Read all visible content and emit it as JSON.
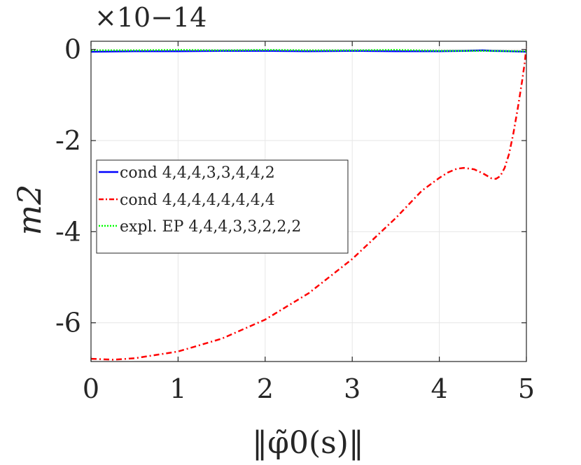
{
  "chart_data": {
    "type": "line",
    "title": "",
    "xlabel": "‖φ̃0(s)‖",
    "ylabel": "m2",
    "exponent_label": "×10−14",
    "y_scale_exponent": -14,
    "xlim": [
      0,
      5
    ],
    "ylim": [
      -6.85,
      0.18
    ],
    "x_ticks": [
      0,
      1,
      2,
      3,
      4,
      5
    ],
    "x_tick_labels": [
      "0",
      "1",
      "2",
      "3",
      "4",
      "5"
    ],
    "y_ticks": [
      0,
      -2,
      -4,
      -6
    ],
    "y_tick_labels": [
      "0",
      "-2",
      "-4",
      "-6"
    ],
    "grid": true,
    "legend_position": "center-left",
    "series": [
      {
        "name": "cond 4,4,4,3,3,4,4,2",
        "color": "#0000ff",
        "style": "solid",
        "x": [
          0,
          0.5,
          1,
          1.5,
          2,
          2.5,
          3,
          3.5,
          4,
          4.3,
          4.5,
          4.6,
          4.8,
          5
        ],
        "y": [
          -0.05,
          -0.04,
          -0.04,
          -0.03,
          -0.03,
          -0.04,
          -0.03,
          -0.04,
          -0.04,
          -0.03,
          -0.02,
          -0.03,
          -0.04,
          -0.05
        ]
      },
      {
        "name": "cond 4,4,4,4,4,4,4,4",
        "color": "#ff0000",
        "style": "dashdot",
        "x": [
          0,
          0.25,
          0.5,
          1.0,
          1.5,
          2.0,
          2.5,
          3.0,
          3.5,
          3.8,
          4.0,
          4.1,
          4.2,
          4.28,
          4.4,
          4.5,
          4.6,
          4.65,
          4.7,
          4.75,
          4.8,
          4.85,
          4.9,
          4.95,
          4.98,
          5.0
        ],
        "y": [
          -6.79,
          -6.81,
          -6.78,
          -6.63,
          -6.35,
          -5.93,
          -5.35,
          -4.6,
          -3.7,
          -3.1,
          -2.82,
          -2.7,
          -2.62,
          -2.6,
          -2.63,
          -2.72,
          -2.83,
          -2.84,
          -2.78,
          -2.6,
          -2.3,
          -1.85,
          -1.3,
          -0.7,
          -0.3,
          0.05
        ]
      },
      {
        "name": "expl. EP 4,4,4,3,3,2,2,2",
        "color": "#00ff00",
        "style": "dotted",
        "x": [
          0,
          0.5,
          1,
          1.5,
          2,
          2.5,
          3,
          3.5,
          4,
          4.5,
          5
        ],
        "y": [
          -0.02,
          -0.02,
          -0.01,
          -0.02,
          -0.01,
          -0.02,
          -0.02,
          -0.01,
          -0.03,
          -0.03,
          -0.04
        ]
      }
    ]
  }
}
